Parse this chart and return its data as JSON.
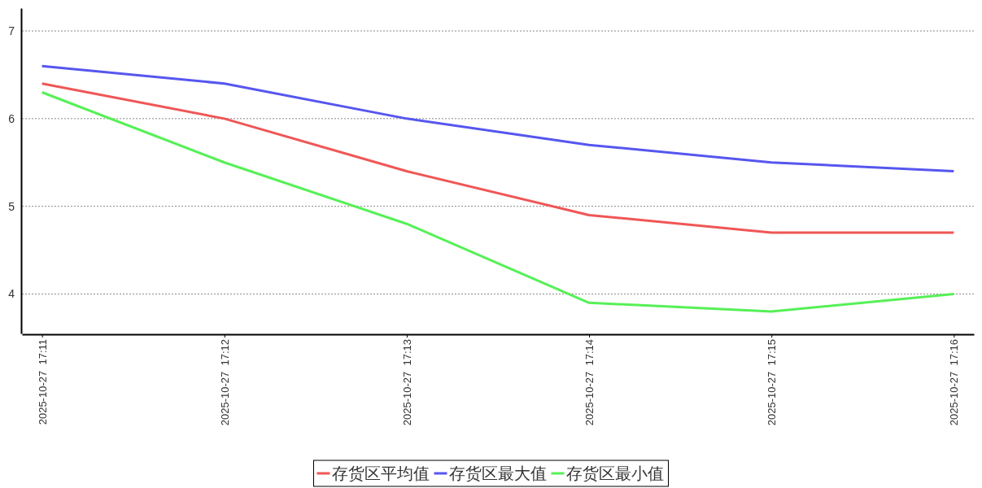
{
  "chart_data": {
    "type": "line",
    "categories": [
      "2025-10-27  17:11",
      "2025-10-27  17:12",
      "2025-10-27  17:13",
      "2025-10-27  17:14",
      "2025-10-27  17:15",
      "2025-10-27  17:16"
    ],
    "series": [
      {
        "name": "存货区平均值",
        "color": "#f05656",
        "values": [
          6.4,
          6.0,
          5.4,
          4.9,
          4.7,
          4.7
        ]
      },
      {
        "name": "存货区最大值",
        "color": "#5656f0",
        "values": [
          6.6,
          6.4,
          6.0,
          5.7,
          5.5,
          5.4
        ]
      },
      {
        "name": "存货区最小值",
        "color": "#56f056",
        "values": [
          6.3,
          5.5,
          4.8,
          3.9,
          3.8,
          4.0
        ]
      }
    ],
    "ylim": [
      3.55,
      7.26
    ],
    "yticks": [
      4,
      5,
      6,
      7
    ],
    "grid": "y",
    "legend": "bottom",
    "line_style": "solid",
    "marker": "none"
  }
}
